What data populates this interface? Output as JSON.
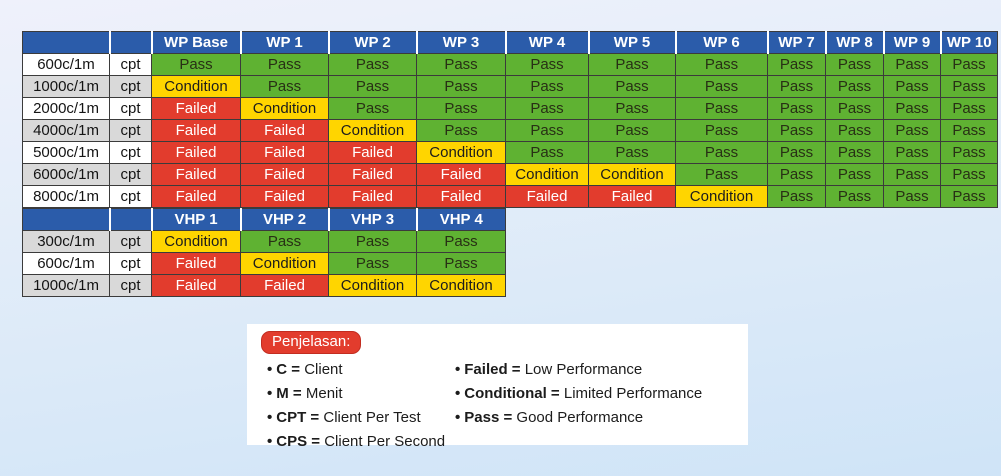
{
  "chart_data": [
    {
      "type": "table",
      "columns": [
        "",
        "",
        "WP Base",
        "WP 1",
        "WP 2",
        "WP 3",
        "WP 4",
        "WP 5",
        "WP 6",
        "WP 7",
        "WP 8",
        "WP 9",
        "WP 10"
      ],
      "rows": [
        {
          "label": "600c/1m",
          "unit": "cpt",
          "cells": [
            "Pass",
            "Pass",
            "Pass",
            "Pass",
            "Pass",
            "Pass",
            "Pass",
            "Pass",
            "Pass",
            "Pass",
            "Pass"
          ]
        },
        {
          "label": "1000c/1m",
          "unit": "cpt",
          "cells": [
            "Condition",
            "Pass",
            "Pass",
            "Pass",
            "Pass",
            "Pass",
            "Pass",
            "Pass",
            "Pass",
            "Pass",
            "Pass"
          ]
        },
        {
          "label": "2000c/1m",
          "unit": "cpt",
          "cells": [
            "Failed",
            "Condition",
            "Pass",
            "Pass",
            "Pass",
            "Pass",
            "Pass",
            "Pass",
            "Pass",
            "Pass",
            "Pass"
          ]
        },
        {
          "label": "4000c/1m",
          "unit": "cpt",
          "cells": [
            "Failed",
            "Failed",
            "Condition",
            "Pass",
            "Pass",
            "Pass",
            "Pass",
            "Pass",
            "Pass",
            "Pass",
            "Pass"
          ]
        },
        {
          "label": "5000c/1m",
          "unit": "cpt",
          "cells": [
            "Failed",
            "Failed",
            "Failed",
            "Condition",
            "Pass",
            "Pass",
            "Pass",
            "Pass",
            "Pass",
            "Pass",
            "Pass"
          ]
        },
        {
          "label": "6000c/1m",
          "unit": "cpt",
          "cells": [
            "Failed",
            "Failed",
            "Failed",
            "Failed",
            "Condition",
            "Condition",
            "Pass",
            "Pass",
            "Pass",
            "Pass",
            "Pass"
          ]
        },
        {
          "label": "8000c/1m",
          "unit": "cpt",
          "cells": [
            "Failed",
            "Failed",
            "Failed",
            "Failed",
            "Failed",
            "Failed",
            "Condition",
            "Pass",
            "Pass",
            "Pass",
            "Pass"
          ]
        }
      ]
    },
    {
      "type": "table",
      "columns": [
        "",
        "",
        "VHP 1",
        "VHP 2",
        "VHP 3",
        "VHP 4"
      ],
      "rows": [
        {
          "label": "300c/1m",
          "unit": "cpt",
          "cells": [
            "Condition",
            "Pass",
            "Pass",
            "Pass"
          ]
        },
        {
          "label": "600c/1m",
          "unit": "cpt",
          "cells": [
            "Failed",
            "Condition",
            "Pass",
            "Pass"
          ]
        },
        {
          "label": "1000c/1m",
          "unit": "cpt",
          "cells": [
            "Failed",
            "Failed",
            "Condition",
            "Condition"
          ]
        }
      ]
    }
  ],
  "legend": {
    "title": "Penjelasan:",
    "left_items": [
      {
        "term": "C",
        "desc": "Client"
      },
      {
        "term": "M",
        "desc": "Menit"
      },
      {
        "term": "CPT",
        "desc": "Client Per Test"
      },
      {
        "term": "CPS",
        "desc": "Client Per Second"
      }
    ],
    "right_items": [
      {
        "term": "Failed",
        "desc": "Low Performance"
      },
      {
        "term": "Conditional",
        "desc": "Limited Performance"
      },
      {
        "term": "Pass",
        "desc": "Good Performance"
      }
    ]
  },
  "status_colors": {
    "Pass": "#5fb232",
    "Condition": "#ffd500",
    "Failed": "#e23c2d"
  },
  "colors": {
    "header_blue": "#2b5caa",
    "stripe_gray": "#d9d9d9",
    "legend_red": "#e23c2d",
    "background_top": "#eff1fb",
    "background_bottom": "#cfe4f7"
  }
}
